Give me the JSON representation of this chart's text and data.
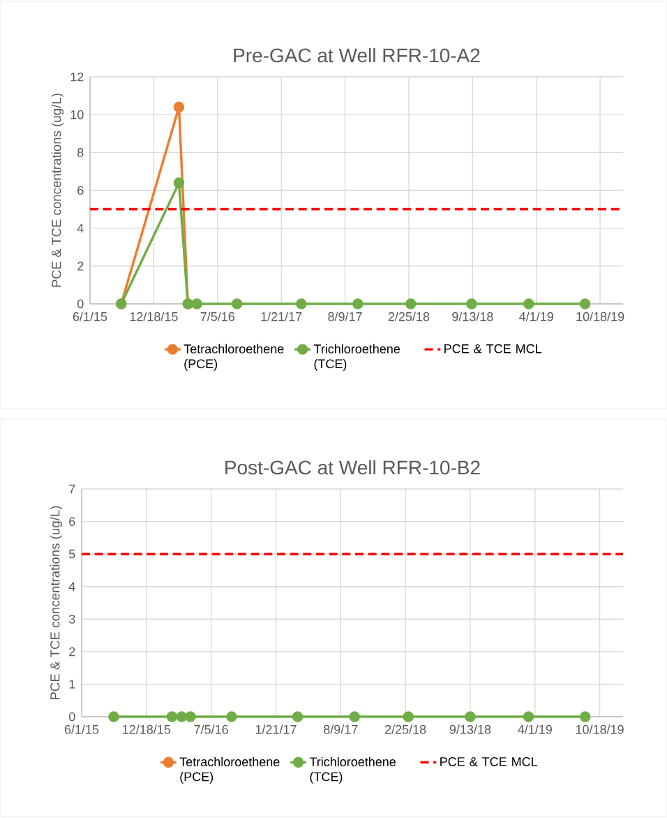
{
  "chart_data": [
    {
      "type": "line",
      "title": "Pre-GAC at Well RFR-10-A2",
      "ylabel": "PCE & TCE concentrations (ug/L)",
      "series": [
        {
          "name": "Tetrachloroethene (PCE)",
          "color": "#ed7d31",
          "x": [
            "2015-09-07",
            "2016-03-06",
            "2016-04-03"
          ],
          "values": [
            0,
            10.4,
            0
          ]
        },
        {
          "name": "Trichloroethene (TCE)",
          "color": "#70ad47",
          "x": [
            "2015-09-07",
            "2016-03-06",
            "2016-04-03",
            "2016-05-01",
            "2016-09-04",
            "2017-03-25",
            "2017-09-18",
            "2018-03-03",
            "2018-09-10",
            "2019-03-08",
            "2019-09-01"
          ],
          "values": [
            0,
            6.4,
            0,
            0,
            0,
            0,
            0,
            0,
            0,
            0,
            0
          ]
        }
      ],
      "ref_lines": [
        {
          "axis": "y",
          "value": 5,
          "label": "PCE & TCE MCL",
          "color": "#ff0000",
          "line_style": "dashed"
        }
      ],
      "xlim": [
        "2015-06-01",
        "2019-12-29"
      ],
      "xticks": [
        {
          "value": "2015-06-01",
          "label": "6/1/15"
        },
        {
          "value": "2015-12-18",
          "label": "12/18/15"
        },
        {
          "value": "2016-07-05",
          "label": "7/5/16"
        },
        {
          "value": "2017-01-21",
          "label": "1/21/17"
        },
        {
          "value": "2017-08-09",
          "label": "8/9/17"
        },
        {
          "value": "2018-02-25",
          "label": "2/25/18"
        },
        {
          "value": "2018-09-13",
          "label": "9/13/18"
        },
        {
          "value": "2019-04-01",
          "label": "4/1/19"
        },
        {
          "value": "2019-10-18",
          "label": "10/18/19"
        }
      ],
      "ylim": [
        0,
        12
      ],
      "yticks": [
        0,
        2,
        4,
        6,
        8,
        10,
        12
      ],
      "grid": true,
      "legend": "bottom",
      "marker": "circle",
      "line_style": "solid"
    },
    {
      "type": "line",
      "title": "Post-GAC at Well RFR-10-B2",
      "ylabel": "PCE & TCE concentrations (ug/L)",
      "series": [
        {
          "name": "Tetrachloroethene (PCE)",
          "color": "#ed7d31"
        },
        {
          "name": "Trichloroethene (TCE)",
          "color": "#70ad47",
          "x": [
            "2015-09-08",
            "2016-03-06",
            "2016-04-05",
            "2016-05-02",
            "2016-09-06",
            "2017-03-29",
            "2017-09-21",
            "2018-03-06",
            "2018-09-13",
            "2019-03-12",
            "2019-09-03"
          ],
          "values": [
            0,
            0,
            0,
            0,
            0,
            0,
            0,
            0,
            0,
            0,
            0
          ]
        }
      ],
      "ref_lines": [
        {
          "axis": "y",
          "value": 5,
          "label": "PCE & TCE MCL",
          "color": "#ff0000",
          "line_style": "dashed"
        }
      ],
      "xlim": [
        "2015-06-01",
        "2019-12-29"
      ],
      "xticks": [
        {
          "value": "2015-06-01",
          "label": "6/1/15"
        },
        {
          "value": "2015-12-18",
          "label": "12/18/15"
        },
        {
          "value": "2016-07-05",
          "label": "7/5/16"
        },
        {
          "value": "2017-01-21",
          "label": "1/21/17"
        },
        {
          "value": "2017-08-09",
          "label": "8/9/17"
        },
        {
          "value": "2018-02-25",
          "label": "2/25/18"
        },
        {
          "value": "2018-09-13",
          "label": "9/13/18"
        },
        {
          "value": "2019-04-01",
          "label": "4/1/19"
        },
        {
          "value": "2019-10-18",
          "label": "10/18/19"
        }
      ],
      "ylim": [
        0,
        7
      ],
      "yticks": [
        0,
        1,
        2,
        3,
        4,
        5,
        6,
        7
      ],
      "grid": true,
      "legend": "bottom",
      "marker": "circle",
      "line_style": "solid"
    }
  ]
}
